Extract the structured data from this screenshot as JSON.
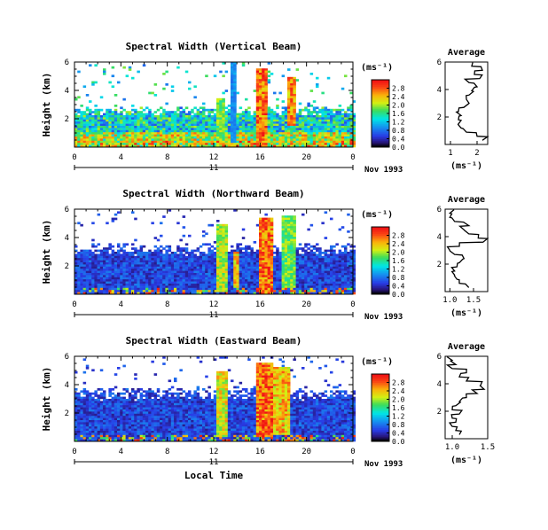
{
  "chart_data": [
    {
      "type": "heatmap",
      "title": "Spectral Width (Vertical Beam)",
      "ylabel": "Height (km)",
      "xlabel": "",
      "x_ticks": [
        "0",
        "4",
        "8",
        "12",
        "16",
        "20",
        "0"
      ],
      "y_ticks": [
        "2",
        "4",
        "6"
      ],
      "xlim": [
        0,
        24
      ],
      "ylim": [
        0,
        6
      ],
      "date_ticks": [
        "11"
      ],
      "date_label": "Nov 1993",
      "colorbar": {
        "unit": "(ms⁻¹)",
        "ticks": [
          "0.0",
          "0.4",
          "0.8",
          "1.2",
          "1.6",
          "2.0",
          "2.4",
          "2.8"
        ],
        "range": [
          0,
          3.2
        ]
      },
      "average": {
        "title": "Average",
        "xlabel": "(ms⁻¹)",
        "x_ticks": [
          "1",
          "2"
        ],
        "xlim": [
          0.8,
          2.4
        ],
        "profile_heights": [
          0.3,
          0.6,
          0.9,
          1.2,
          1.5,
          1.8,
          2.1,
          2.4,
          2.7,
          3.0,
          3.3,
          3.6,
          3.9,
          4.2,
          4.5,
          4.8,
          5.1,
          5.4,
          5.7
        ],
        "profile_values": [
          2.2,
          2.0,
          1.6,
          1.4,
          1.3,
          1.3,
          1.4,
          1.3,
          1.5,
          1.7,
          1.6,
          1.7,
          1.8,
          2.0,
          1.7,
          2.1,
          1.9,
          2.2,
          1.8
        ]
      },
      "features": [
        {
          "x0": 0,
          "x1": 24,
          "y0": 0.0,
          "y1": 2.6,
          "level": 1.2
        },
        {
          "x0": 12.3,
          "x1": 13.0,
          "y0": 0.5,
          "y1": 3.5,
          "level": 2.0
        },
        {
          "x0": 13.5,
          "x1": 14.0,
          "y0": 0.3,
          "y1": 6.0,
          "level": 1.0
        },
        {
          "x0": 15.6,
          "x1": 16.6,
          "y0": 0.0,
          "y1": 5.6,
          "level": 3.0
        },
        {
          "x0": 18.4,
          "x1": 19.0,
          "y0": 1.5,
          "y1": 5.0,
          "level": 2.8
        }
      ]
    },
    {
      "type": "heatmap",
      "title": "Spectral Width (Northward Beam)",
      "ylabel": "Height (km)",
      "xlabel": "",
      "x_ticks": [
        "0",
        "4",
        "8",
        "12",
        "16",
        "20",
        "0"
      ],
      "y_ticks": [
        "2",
        "4",
        "6"
      ],
      "xlim": [
        0,
        24
      ],
      "ylim": [
        0,
        6
      ],
      "date_ticks": [
        "11"
      ],
      "date_label": "Nov 1993",
      "colorbar": {
        "unit": "(ms⁻¹)",
        "ticks": [
          "0.0",
          "0.4",
          "0.8",
          "1.2",
          "1.6",
          "2.0",
          "2.4",
          "2.8"
        ],
        "range": [
          0,
          3.2
        ]
      },
      "average": {
        "title": "Average",
        "xlabel": "(ms⁻¹)",
        "x_ticks": [
          "1.0",
          "1.5"
        ],
        "xlim": [
          0.9,
          1.8
        ],
        "profile_heights": [
          0.3,
          0.6,
          0.9,
          1.2,
          1.5,
          1.8,
          2.1,
          2.4,
          2.7,
          3.0,
          3.3,
          3.6,
          3.9,
          4.2,
          4.5,
          4.8,
          5.1,
          5.4,
          5.7
        ],
        "profile_values": [
          1.4,
          1.2,
          1.15,
          1.1,
          1.1,
          1.15,
          1.2,
          1.3,
          1.1,
          1.0,
          1.2,
          1.7,
          1.6,
          1.4,
          1.3,
          1.4,
          1.1,
          1.0,
          1.0
        ]
      },
      "features": [
        {
          "x0": 0,
          "x1": 24,
          "y0": 0.0,
          "y1": 3.2,
          "level": 0.5
        },
        {
          "x0": 12.3,
          "x1": 13.3,
          "y0": 0.2,
          "y1": 5.0,
          "level": 2.2
        },
        {
          "x0": 13.8,
          "x1": 14.3,
          "y0": 0.5,
          "y1": 3.0,
          "level": 2.6
        },
        {
          "x0": 16.0,
          "x1": 17.2,
          "y0": 0.0,
          "y1": 5.4,
          "level": 3.0
        },
        {
          "x0": 17.8,
          "x1": 19.0,
          "y0": 0.5,
          "y1": 5.6,
          "level": 2.0
        }
      ]
    },
    {
      "type": "heatmap",
      "title": "Spectral Width (Eastward Beam)",
      "ylabel": "Height (km)",
      "xlabel": "Local Time",
      "x_ticks": [
        "0",
        "4",
        "8",
        "12",
        "16",
        "20",
        "0"
      ],
      "y_ticks": [
        "2",
        "4",
        "6"
      ],
      "xlim": [
        0,
        24
      ],
      "ylim": [
        0,
        6
      ],
      "date_ticks": [
        "11"
      ],
      "date_label": "Nov 1993",
      "colorbar": {
        "unit": "(ms⁻¹)",
        "ticks": [
          "0.0",
          "0.4",
          "0.8",
          "1.2",
          "1.6",
          "2.0",
          "2.4",
          "2.8"
        ],
        "range": [
          0,
          3.2
        ]
      },
      "average": {
        "title": "Average",
        "xlabel": "(ms⁻¹)",
        "x_ticks": [
          "1.0",
          "1.5"
        ],
        "xlim": [
          0.9,
          1.5
        ],
        "profile_heights": [
          0.3,
          0.6,
          0.9,
          1.2,
          1.5,
          1.8,
          2.1,
          2.4,
          2.7,
          3.0,
          3.3,
          3.6,
          3.9,
          4.2,
          4.5,
          4.8,
          5.1,
          5.4,
          5.7
        ],
        "profile_values": [
          1.1,
          1.05,
          1.0,
          1.05,
          1.0,
          1.1,
          1.0,
          1.05,
          1.1,
          1.2,
          1.35,
          1.45,
          1.4,
          1.2,
          1.1,
          1.2,
          1.0,
          1.05,
          1.0
        ]
      },
      "features": [
        {
          "x0": 0,
          "x1": 24,
          "y0": 0.0,
          "y1": 3.4,
          "level": 0.5
        },
        {
          "x0": 12.3,
          "x1": 13.3,
          "y0": 0.3,
          "y1": 5.0,
          "level": 2.4
        },
        {
          "x0": 15.6,
          "x1": 17.0,
          "y0": 0.3,
          "y1": 5.6,
          "level": 3.0
        },
        {
          "x0": 17.2,
          "x1": 18.5,
          "y0": 0.5,
          "y1": 5.2,
          "level": 2.6
        }
      ]
    }
  ]
}
